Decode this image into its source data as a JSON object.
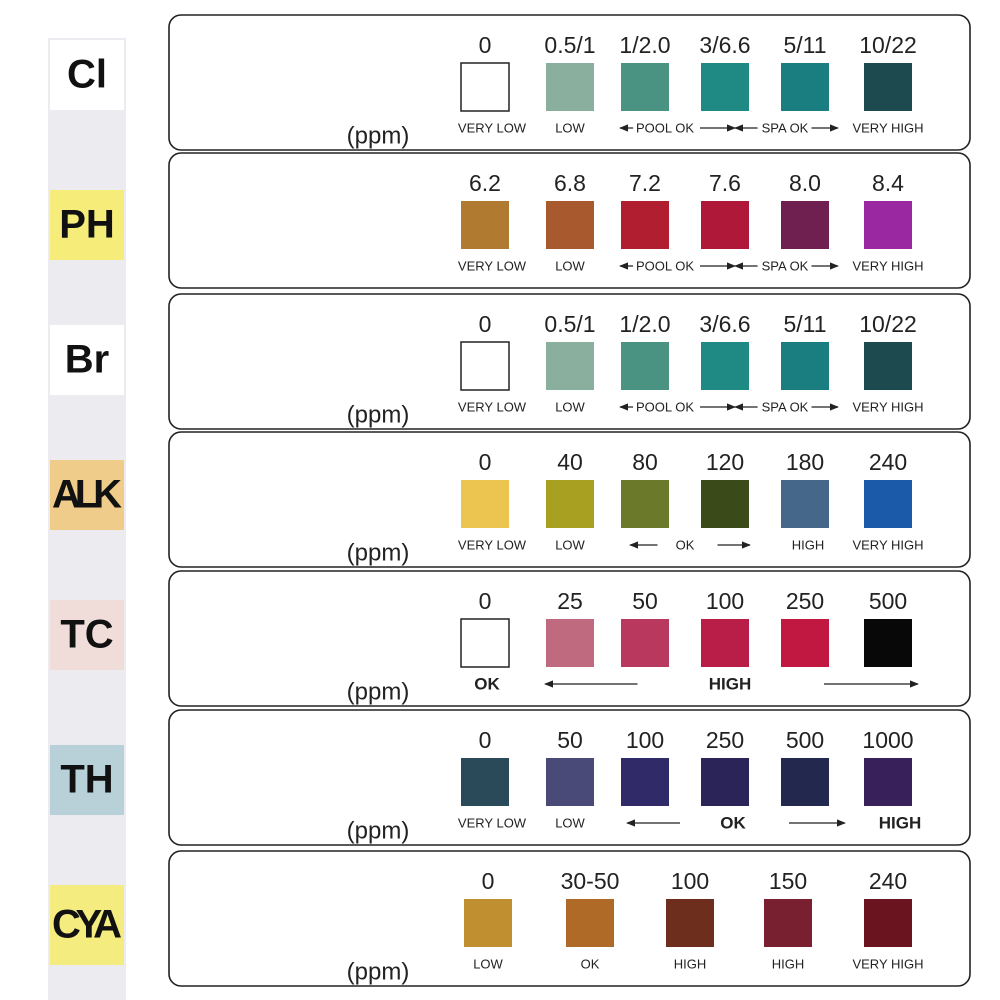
{
  "rows": [
    {
      "label": "Cl",
      "label_color": "#ffffff",
      "unit": "(ppm)",
      "swatches": [
        {
          "value": "0",
          "color": "#ffffff"
        },
        {
          "value": "0.5/1",
          "color": "#8aaf9f"
        },
        {
          "value": "1/2.0",
          "color": "#4a9282"
        },
        {
          "value": "3/6.6",
          "color": "#1f8a84"
        },
        {
          "value": "5/11",
          "color": "#1a7e80"
        },
        {
          "value": "10/22",
          "color": "#1d4a4e"
        }
      ],
      "ranges": [
        "VERY LOW",
        "LOW",
        "POOL OK",
        "SPA OK",
        "VERY HIGH"
      ]
    },
    {
      "label": "PH",
      "label_color": "#f5ec7a",
      "swatches": [
        {
          "value": "6.2",
          "color": "#b07a30"
        },
        {
          "value": "6.8",
          "color": "#a85a2e"
        },
        {
          "value": "7.2",
          "color": "#b01e30"
        },
        {
          "value": "7.6",
          "color": "#b0183a"
        },
        {
          "value": "8.0",
          "color": "#702050"
        },
        {
          "value": "8.4",
          "color": "#9a28a0"
        }
      ],
      "ranges": [
        "VERY LOW",
        "LOW",
        "POOL OK",
        "SPA OK",
        "VERY HIGH"
      ]
    },
    {
      "label": "Br",
      "label_color": "#ffffff",
      "unit": "(ppm)",
      "swatches": [
        {
          "value": "0",
          "color": "#ffffff"
        },
        {
          "value": "0.5/1",
          "color": "#8aaf9f"
        },
        {
          "value": "1/2.0",
          "color": "#4a9282"
        },
        {
          "value": "3/6.6",
          "color": "#1f8a84"
        },
        {
          "value": "5/11",
          "color": "#1a7e80"
        },
        {
          "value": "10/22",
          "color": "#1d4a4e"
        }
      ],
      "ranges": [
        "VERY LOW",
        "LOW",
        "POOL OK",
        "SPA OK",
        "VERY HIGH"
      ]
    },
    {
      "label": "ALK",
      "label_color": "#f0cc8a",
      "unit": "(ppm)",
      "swatches": [
        {
          "value": "0",
          "color": "#ecc450"
        },
        {
          "value": "40",
          "color": "#a8a020"
        },
        {
          "value": "80",
          "color": "#6a7a2a"
        },
        {
          "value": "120",
          "color": "#3a4a18"
        },
        {
          "value": "180",
          "color": "#45688a"
        },
        {
          "value": "240",
          "color": "#1a5aa8"
        }
      ],
      "ranges": [
        "VERY LOW",
        "LOW",
        "OK",
        "HIGH",
        "VERY HIGH"
      ]
    },
    {
      "label": "TC",
      "label_color": "#f0dcd8",
      "unit": "(ppm)",
      "swatches": [
        {
          "value": "0",
          "color": "#ffffff"
        },
        {
          "value": "25",
          "color": "#c06a80"
        },
        {
          "value": "50",
          "color": "#b8385e"
        },
        {
          "value": "100",
          "color": "#b81e48"
        },
        {
          "value": "250",
          "color": "#c01840"
        },
        {
          "value": "500",
          "color": "#080808"
        }
      ],
      "ranges": [
        "OK",
        "HIGH"
      ]
    },
    {
      "label": "TH",
      "label_color": "#b8d0d8",
      "unit": "(ppm)",
      "swatches": [
        {
          "value": "0",
          "color": "#2a4a5a"
        },
        {
          "value": "50",
          "color": "#4a4a78"
        },
        {
          "value": "100",
          "color": "#302a68"
        },
        {
          "value": "250",
          "color": "#2a2458"
        },
        {
          "value": "500",
          "color": "#22284e"
        },
        {
          "value": "1000",
          "color": "#38205a"
        }
      ],
      "ranges": [
        "VERY LOW",
        "LOW",
        "OK",
        "HIGH"
      ]
    },
    {
      "label": "CYA",
      "label_color": "#f5ec80",
      "unit": "(ppm)",
      "swatches": [
        {
          "value": "0",
          "color": "#c09030"
        },
        {
          "value": "30-50",
          "color": "#b06a28"
        },
        {
          "value": "100",
          "color": "#6e2e1e"
        },
        {
          "value": "150",
          "color": "#782030"
        },
        {
          "value": "240",
          "color": "#6a1420"
        }
      ],
      "ranges": [
        "LOW",
        "OK",
        "HIGH",
        "HIGH",
        "VERY HIGH"
      ]
    }
  ]
}
